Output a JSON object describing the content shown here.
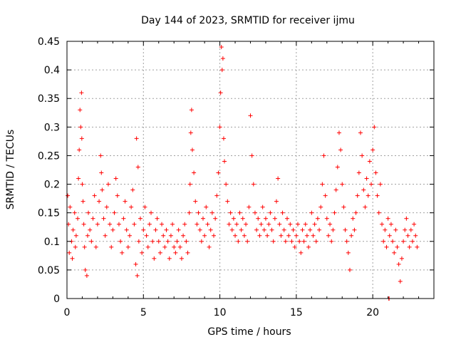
{
  "chart_data": {
    "type": "scatter",
    "title": "Day 144 of 2023, SRMTID for receiver ijmu",
    "xlabel": "GPS time / hours",
    "ylabel": "SRMTID / TECUs",
    "xlim": [
      0,
      24
    ],
    "ylim": [
      0,
      0.45
    ],
    "xticks": [
      0,
      5,
      10,
      15,
      20
    ],
    "yticks": [
      0,
      0.05,
      0.1,
      0.15,
      0.2,
      0.25,
      0.3,
      0.35,
      0.4,
      0.45
    ],
    "xtick_labels": [
      "0",
      "5",
      "10",
      "15",
      "20"
    ],
    "ytick_labels": [
      "0",
      "0.05",
      "0.1",
      "0.15",
      "0.2",
      "0.25",
      "0.3",
      "0.35",
      "0.4",
      "0.45"
    ],
    "grid": true,
    "marker": "+",
    "color": "#ff0000",
    "series": [
      {
        "name": "SRMTID",
        "x": [
          0.05,
          0.1,
          0.15,
          0.2,
          0.3,
          0.35,
          0.4,
          0.5,
          0.55,
          0.6,
          0.7,
          0.75,
          0.8,
          0.85,
          0.9,
          0.95,
          0.97,
          1.0,
          1.05,
          1.1,
          1.15,
          1.2,
          1.3,
          1.35,
          1.4,
          1.5,
          1.6,
          1.7,
          1.8,
          1.9,
          2.0,
          2.1,
          2.2,
          2.25,
          2.3,
          2.4,
          2.5,
          2.6,
          2.7,
          2.8,
          2.9,
          3.0,
          3.1,
          3.2,
          3.3,
          3.4,
          3.5,
          3.6,
          3.7,
          3.8,
          3.9,
          4.0,
          4.1,
          4.2,
          4.3,
          4.4,
          4.5,
          4.55,
          4.6,
          4.65,
          4.7,
          4.8,
          4.9,
          5.0,
          5.1,
          5.2,
          5.3,
          5.4,
          5.5,
          5.6,
          5.7,
          5.8,
          5.9,
          6.0,
          6.1,
          6.2,
          6.3,
          6.4,
          6.5,
          6.6,
          6.7,
          6.8,
          6.9,
          7.0,
          7.1,
          7.2,
          7.3,
          7.4,
          7.5,
          7.6,
          7.7,
          7.8,
          7.9,
          8.0,
          8.05,
          8.1,
          8.15,
          8.2,
          8.3,
          8.4,
          8.5,
          8.6,
          8.7,
          8.8,
          8.9,
          9.0,
          9.1,
          9.2,
          9.3,
          9.4,
          9.5,
          9.6,
          9.7,
          9.8,
          9.9,
          10.0,
          10.05,
          10.1,
          10.15,
          10.2,
          10.25,
          10.3,
          10.4,
          10.5,
          10.6,
          10.7,
          10.8,
          10.9,
          11.0,
          11.1,
          11.2,
          11.3,
          11.4,
          11.5,
          11.6,
          11.7,
          11.8,
          11.9,
          12.0,
          12.1,
          12.2,
          12.3,
          12.4,
          12.5,
          12.6,
          12.7,
          12.8,
          12.9,
          13.0,
          13.1,
          13.2,
          13.3,
          13.4,
          13.5,
          13.6,
          13.7,
          13.8,
          13.9,
          14.0,
          14.1,
          14.2,
          14.3,
          14.4,
          14.5,
          14.6,
          14.7,
          14.8,
          14.9,
          15.0,
          15.1,
          15.2,
          15.3,
          15.4,
          15.5,
          15.6,
          15.7,
          15.8,
          15.9,
          16.0,
          16.1,
          16.2,
          16.3,
          16.4,
          16.5,
          16.6,
          16.7,
          16.8,
          16.9,
          17.0,
          17.1,
          17.2,
          17.3,
          17.4,
          17.5,
          17.6,
          17.7,
          17.8,
          17.9,
          18.0,
          18.1,
          18.2,
          18.3,
          18.4,
          18.5,
          18.6,
          18.7,
          18.8,
          18.9,
          19.0,
          19.1,
          19.2,
          19.3,
          19.4,
          19.5,
          19.6,
          19.7,
          19.8,
          19.9,
          20.0,
          20.1,
          20.2,
          20.3,
          20.4,
          20.5,
          20.6,
          20.7,
          20.8,
          20.9,
          21.0,
          21.1,
          21.2,
          21.3,
          21.4,
          21.5,
          21.6,
          21.7,
          21.8,
          21.9,
          22.0,
          22.1,
          22.2,
          22.3,
          22.4,
          22.5,
          22.6,
          22.7,
          22.8,
          22.9,
          21.05,
          21.07
        ],
        "y": [
          0.18,
          0.13,
          0.08,
          0.16,
          0.1,
          0.07,
          0.12,
          0.15,
          0.09,
          0.11,
          0.14,
          0.21,
          0.26,
          0.33,
          0.3,
          0.36,
          0.28,
          0.2,
          0.17,
          0.13,
          0.09,
          0.05,
          0.04,
          0.11,
          0.15,
          0.12,
          0.1,
          0.14,
          0.18,
          0.09,
          0.13,
          0.17,
          0.25,
          0.22,
          0.19,
          0.14,
          0.11,
          0.16,
          0.2,
          0.13,
          0.09,
          0.12,
          0.15,
          0.21,
          0.18,
          0.13,
          0.1,
          0.08,
          0.14,
          0.17,
          0.12,
          0.09,
          0.11,
          0.16,
          0.19,
          0.13,
          0.06,
          0.28,
          0.04,
          0.23,
          0.1,
          0.14,
          0.08,
          0.12,
          0.16,
          0.11,
          0.09,
          0.13,
          0.15,
          0.1,
          0.07,
          0.12,
          0.14,
          0.1,
          0.08,
          0.13,
          0.11,
          0.09,
          0.12,
          0.1,
          0.07,
          0.11,
          0.13,
          0.09,
          0.08,
          0.1,
          0.12,
          0.09,
          0.07,
          0.11,
          0.13,
          0.1,
          0.08,
          0.15,
          0.2,
          0.29,
          0.33,
          0.26,
          0.22,
          0.17,
          0.13,
          0.15,
          0.12,
          0.1,
          0.14,
          0.11,
          0.16,
          0.13,
          0.09,
          0.12,
          0.15,
          0.11,
          0.14,
          0.18,
          0.22,
          0.3,
          0.36,
          0.44,
          0.4,
          0.42,
          0.28,
          0.24,
          0.2,
          0.17,
          0.13,
          0.15,
          0.12,
          0.14,
          0.11,
          0.13,
          0.1,
          0.15,
          0.12,
          0.14,
          0.11,
          0.13,
          0.1,
          0.16,
          0.32,
          0.25,
          0.2,
          0.15,
          0.12,
          0.14,
          0.11,
          0.13,
          0.16,
          0.12,
          0.14,
          0.11,
          0.13,
          0.15,
          0.12,
          0.1,
          0.14,
          0.17,
          0.21,
          0.13,
          0.11,
          0.15,
          0.12,
          0.1,
          0.14,
          0.11,
          0.13,
          0.1,
          0.12,
          0.09,
          0.11,
          0.13,
          0.1,
          0.08,
          0.12,
          0.1,
          0.13,
          0.11,
          0.09,
          0.12,
          0.15,
          0.11,
          0.13,
          0.1,
          0.14,
          0.12,
          0.16,
          0.2,
          0.25,
          0.18,
          0.14,
          0.11,
          0.13,
          0.1,
          0.12,
          0.15,
          0.19,
          0.23,
          0.29,
          0.26,
          0.2,
          0.16,
          0.12,
          0.1,
          0.08,
          0.05,
          0.11,
          0.14,
          0.12,
          0.15,
          0.18,
          0.22,
          0.29,
          0.25,
          0.19,
          0.16,
          0.21,
          0.18,
          0.24,
          0.2,
          0.26,
          0.3,
          0.22,
          0.18,
          0.15,
          0.2,
          0.13,
          0.1,
          0.12,
          0.09,
          0.14,
          0.11,
          0.13,
          0.1,
          0.08,
          0.12,
          0.09,
          0.06,
          0.03,
          0.07,
          0.1,
          0.12,
          0.14,
          0.11,
          0.09,
          0.12,
          0.1,
          0.13,
          0.11,
          0.09,
          0.0,
          0.0
        ]
      }
    ]
  }
}
